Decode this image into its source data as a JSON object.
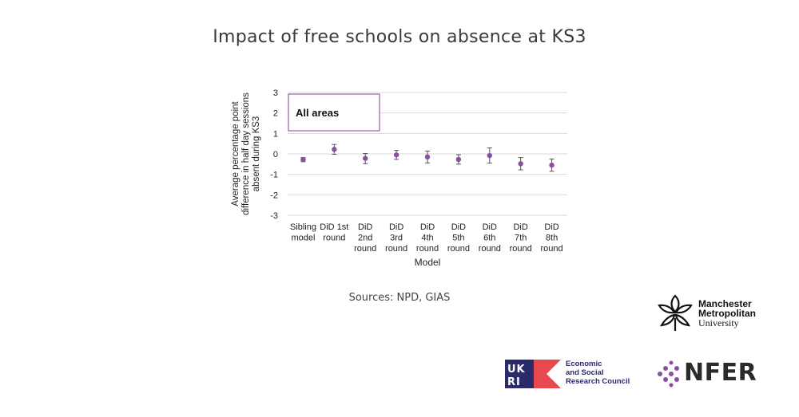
{
  "page": {
    "title": "Impact of free schools on absence at KS3",
    "sources": "Sources: NPD, GIAS"
  },
  "logos": {
    "mmu": [
      "Manchester",
      "Metropolitan",
      "University"
    ],
    "ukri": "UKRI",
    "esrc": [
      "Economic",
      "and Social",
      "Research Council"
    ],
    "nfer": "NFER"
  },
  "colors": {
    "marker": "#8a4f9e",
    "box_border": "#9b5ca8",
    "grid": "#d9d9d9",
    "ukri_blue": "#2b2a6b",
    "ukri_red": "#e8484f",
    "nfer_purple": "#8a4f9e"
  },
  "chart_data": {
    "type": "scatter",
    "annotation": "All areas",
    "ylabel": [
      "Average percentage point",
      "difference in half day sessions",
      "absent during KS3"
    ],
    "xlabel": "Model",
    "ylim": [
      -3,
      3
    ],
    "yticks": [
      3,
      2,
      1,
      0,
      -1,
      -2,
      -3
    ],
    "grid": true,
    "categories": [
      [
        "Sibling",
        "model"
      ],
      [
        "DiD 1st",
        "round"
      ],
      [
        "DiD",
        "2nd",
        "round"
      ],
      [
        "DiD",
        "3rd",
        "round"
      ],
      [
        "DiD",
        "4th",
        "round"
      ],
      [
        "DiD",
        "5th",
        "round"
      ],
      [
        "DiD",
        "6th",
        "round"
      ],
      [
        "DiD",
        "7th",
        "round"
      ],
      [
        "DiD",
        "8th",
        "round"
      ]
    ],
    "values": [
      -0.28,
      0.22,
      -0.22,
      -0.05,
      -0.15,
      -0.27,
      -0.08,
      -0.48,
      -0.55
    ],
    "ci_low": [
      -0.38,
      -0.02,
      -0.48,
      -0.27,
      -0.44,
      -0.5,
      -0.45,
      -0.78,
      -0.85
    ],
    "ci_high": [
      -0.18,
      0.46,
      0.02,
      0.17,
      0.14,
      -0.04,
      0.29,
      -0.18,
      -0.25
    ]
  }
}
